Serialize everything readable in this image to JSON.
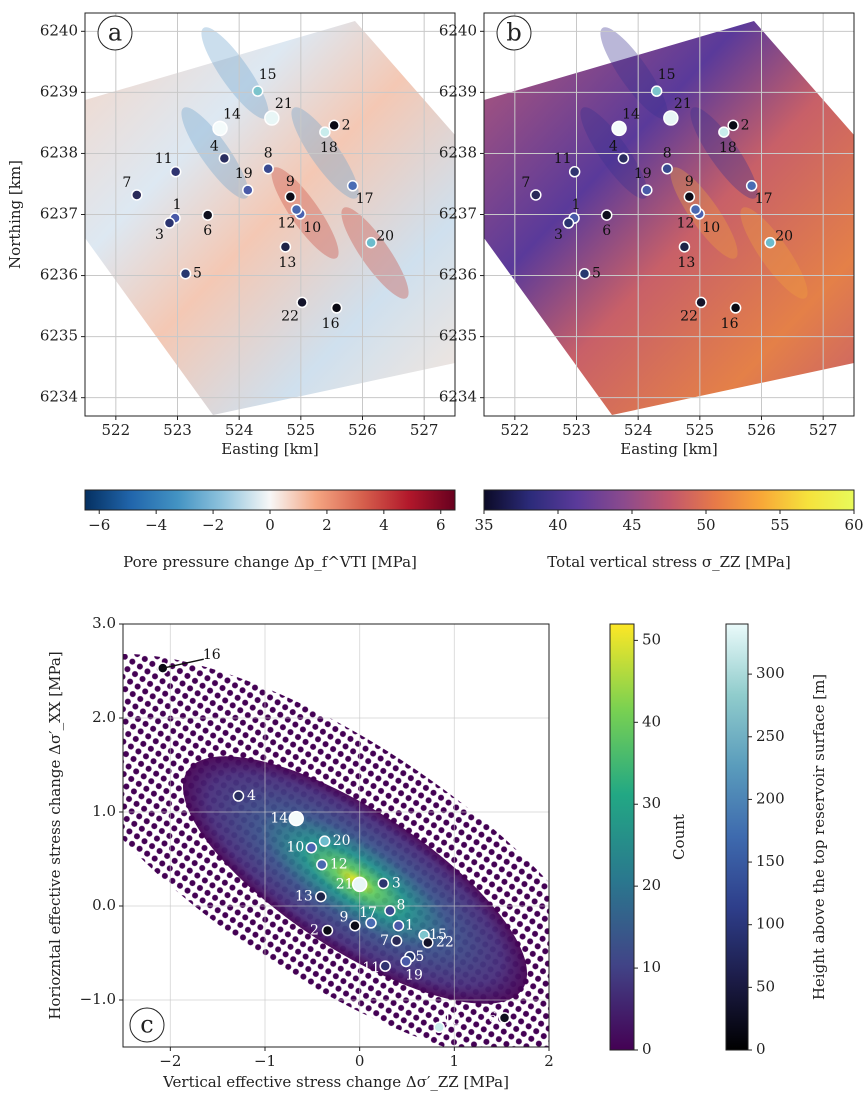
{
  "chart_data": [
    {
      "type": "map",
      "panel_label": "a",
      "xlabel": "Easting [km]",
      "ylabel": "Northing [km]",
      "xlim": [
        521.5,
        527.5
      ],
      "ylim": [
        6233.7,
        6240.3
      ],
      "xticks": [
        522,
        523,
        524,
        525,
        526,
        527
      ],
      "yticks": [
        6234,
        6235,
        6236,
        6237,
        6238,
        6239,
        6240
      ],
      "grid": true,
      "wells": {
        "labels": [
          "1",
          "2",
          "3",
          "4",
          "5",
          "6",
          "7",
          "8",
          "9",
          "10",
          "11",
          "12",
          "13",
          "14",
          "15",
          "16",
          "17",
          "18",
          "19",
          "20",
          "21",
          "22"
        ],
        "x": [
          522.96,
          525.54,
          522.87,
          523.76,
          523.13,
          523.49,
          522.34,
          524.47,
          524.83,
          524.99,
          522.97,
          524.93,
          524.75,
          523.69,
          524.3,
          525.58,
          525.84,
          525.39,
          524.14,
          526.14,
          524.53,
          525.02
        ],
        "y": [
          6236.94,
          6238.46,
          6236.86,
          6237.92,
          6236.03,
          6236.99,
          6237.32,
          6237.75,
          6237.29,
          6237.01,
          6237.7,
          6237.08,
          6236.47,
          6238.41,
          6239.02,
          6235.47,
          6237.47,
          6238.35,
          6237.4,
          6236.54,
          6238.58,
          6235.56
        ],
        "colors": [
          "#4a5aa8",
          "#0a0a14",
          "#2c3470",
          "#2a2e60",
          "#283870",
          "#10101e",
          "#2a2a58",
          "#3a4a90",
          "#0c0c18",
          "#4a62b0",
          "#303470",
          "#4a68b0",
          "#1e2448",
          "#f4fbfb",
          "#7cc4cc",
          "#0a0a14",
          "#4a6cb4",
          "#c8ecec",
          "#4a5aa8",
          "#6cbccc",
          "#e8f6f6",
          "#14142a"
        ]
      },
      "colorbar": {
        "label": "Pore pressure change Δp_f^VTI [MPa]",
        "lim": [
          -6.5,
          6.5
        ],
        "ticks": [
          {
            "value": -6,
            "label": "−6"
          },
          {
            "value": -4,
            "label": "−4"
          },
          {
            "value": -2,
            "label": "−2"
          },
          0,
          2,
          4,
          6
        ],
        "colors": [
          "#053061",
          "#2166ac",
          "#4393c3",
          "#92c5de",
          "#f7f7f7",
          "#f4a582",
          "#d6604d",
          "#b2182b",
          "#67001f"
        ]
      }
    },
    {
      "type": "map",
      "panel_label": "b",
      "xlabel": "Easting [km]",
      "xlim": [
        521.5,
        527.5
      ],
      "ylim": [
        6233.7,
        6240.3
      ],
      "xticks": [
        522,
        523,
        524,
        525,
        526,
        527
      ],
      "yticks": [
        6234,
        6235,
        6236,
        6237,
        6238,
        6239,
        6240
      ],
      "grid": true,
      "wells": {
        "labels": [
          "1",
          "2",
          "3",
          "4",
          "5",
          "6",
          "7",
          "8",
          "9",
          "10",
          "11",
          "12",
          "13",
          "14",
          "15",
          "16",
          "17",
          "18",
          "19",
          "20",
          "21",
          "22"
        ],
        "x": [
          522.96,
          525.54,
          522.87,
          523.76,
          523.13,
          523.49,
          522.34,
          524.47,
          524.83,
          524.99,
          522.97,
          524.93,
          524.75,
          523.69,
          524.3,
          525.58,
          525.84,
          525.39,
          524.14,
          526.14,
          524.53,
          525.02
        ],
        "y": [
          6236.94,
          6238.46,
          6236.86,
          6237.92,
          6236.03,
          6236.99,
          6237.32,
          6237.75,
          6237.29,
          6237.01,
          6237.7,
          6237.08,
          6236.47,
          6238.41,
          6239.02,
          6235.47,
          6237.47,
          6238.35,
          6237.4,
          6236.54,
          6238.58,
          6235.56
        ],
        "colors": [
          "#4a5aa8",
          "#0a0a14",
          "#2c3470",
          "#2a2e60",
          "#283870",
          "#10101e",
          "#2a2a58",
          "#3a4a90",
          "#0c0c18",
          "#4a62b0",
          "#303470",
          "#4a68b0",
          "#1e2448",
          "#f4fbfb",
          "#7cc4cc",
          "#0a0a14",
          "#4a6cb4",
          "#c8ecec",
          "#4a5aa8",
          "#6cbccc",
          "#e8f6f6",
          "#14142a"
        ]
      },
      "colorbar": {
        "label": "Total vertical stress σ_ZZ [MPa]",
        "lim": [
          35,
          60
        ],
        "ticks": [
          35,
          40,
          45,
          50,
          55,
          60
        ],
        "colors": [
          "#0b0a26",
          "#2c2b7a",
          "#5a3a9a",
          "#8a4a8e",
          "#c0566e",
          "#e77a48",
          "#f8a838",
          "#f6e23c",
          "#e8fa5a"
        ]
      }
    },
    {
      "type": "scatter",
      "panel_label": "c",
      "xlabel": "Vertical effective stress change Δσ′_ZZ [MPa]",
      "ylabel": "Horiozntal effective stress change Δσ′_XX [MPa]",
      "xlim": [
        -2.5,
        2
      ],
      "ylim": [
        -1.5,
        3.0
      ],
      "xticks": [
        {
          "value": -2,
          "label": "−2"
        },
        {
          "value": -1,
          "label": "−1"
        },
        0,
        1,
        2
      ],
      "yticks": [
        {
          "value": -1,
          "label": "−1.0"
        },
        {
          "value": 0,
          "label": "0.0"
        },
        {
          "value": 1,
          "label": "1.0"
        },
        {
          "value": 2,
          "label": "2.0"
        },
        {
          "value": 3,
          "label": "3.0"
        }
      ],
      "grid": true,
      "wells": {
        "labels": [
          "1",
          "2",
          "3",
          "4",
          "5",
          "6",
          "7",
          "8",
          "9",
          "10",
          "11",
          "12",
          "13",
          "14",
          "15",
          "16",
          "17",
          "18",
          "19",
          "20",
          "21",
          "22"
        ],
        "x": [
          0.41,
          -0.34,
          0.25,
          -1.28,
          0.53,
          1.53,
          0.39,
          0.32,
          -0.05,
          -0.51,
          0.27,
          -0.4,
          -0.41,
          -0.67,
          0.68,
          -2.08,
          0.12,
          0.84,
          0.49,
          -0.37,
          0.0,
          0.72
        ],
        "y": [
          -0.21,
          -0.26,
          0.24,
          1.17,
          -0.54,
          -1.19,
          -0.37,
          -0.05,
          -0.21,
          0.62,
          -0.64,
          0.44,
          0.1,
          0.93,
          -0.31,
          2.53,
          -0.18,
          -1.29,
          -0.59,
          0.69,
          0.23,
          -0.39
        ],
        "colors": [
          "#4a5aa8",
          "#0a0a14",
          "#2c3470",
          "#2a2e60",
          "#283870",
          "#10101e",
          "#2a2a58",
          "#3a4a90",
          "#0c0c18",
          "#4a62b0",
          "#303470",
          "#4a68b0",
          "#1e2448",
          "#f4fbfb",
          "#7cc4cc",
          "#0a0a14",
          "#4a6cb4",
          "#c8ecec",
          "#4a5aa8",
          "#6cbccc",
          "#e8f6f6",
          "#14142a"
        ]
      },
      "colorbars": [
        {
          "label": "Count",
          "lim": [
            0,
            52
          ],
          "ticks": [
            0,
            10,
            20,
            30,
            40,
            50
          ],
          "colors": [
            "#440154",
            "#414487",
            "#2a788e",
            "#22a884",
            "#7ad151",
            "#fde725"
          ]
        },
        {
          "label": "Height above the top reservoir surface [m]",
          "lim": [
            0,
            340
          ],
          "ticks": [
            0,
            50,
            100,
            150,
            200,
            250,
            300
          ],
          "colors": [
            "#000000",
            "#1c1c48",
            "#2e3e8a",
            "#3e6aae",
            "#5a9cbc",
            "#90cccc",
            "#eafafa"
          ]
        }
      ]
    }
  ]
}
